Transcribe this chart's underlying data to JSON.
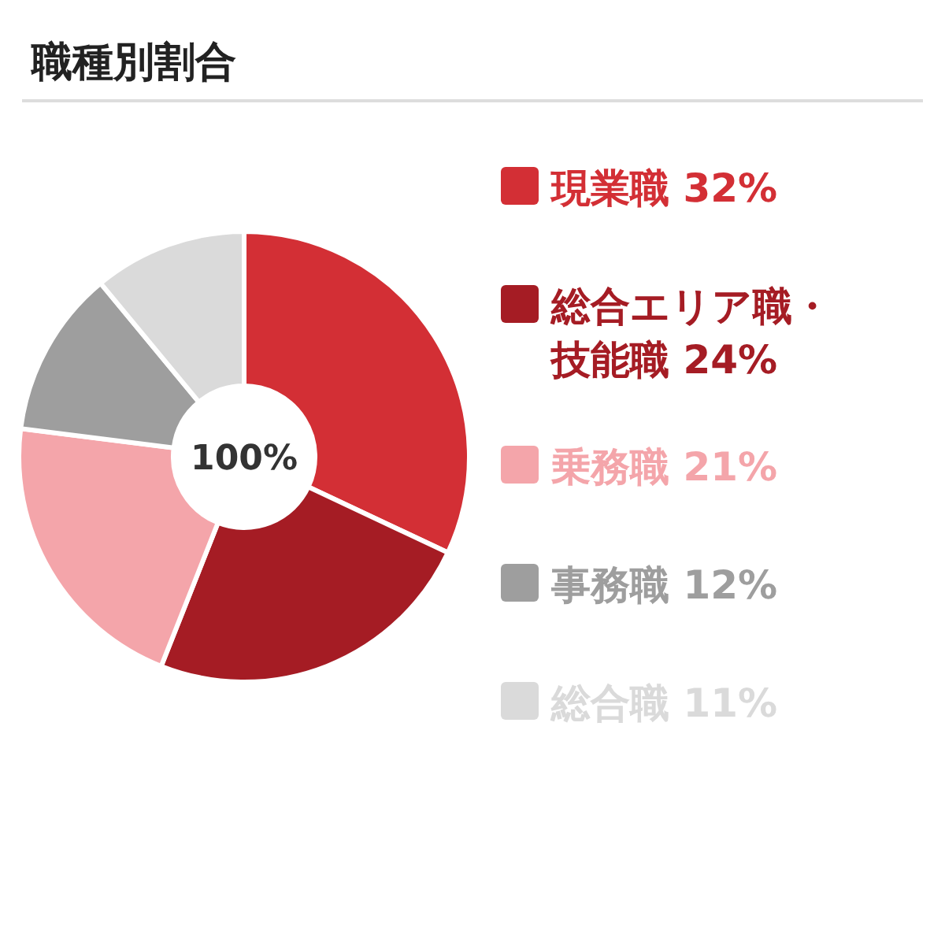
{
  "chart_data": {
    "type": "donut",
    "title": "職種別割合",
    "categories": [
      "現業職",
      "総合エリア職・技能職",
      "乗務職",
      "事務職",
      "総合職"
    ],
    "values": [
      32,
      24,
      21,
      12,
      11
    ],
    "value_labels": [
      "32%",
      "24%",
      "21%",
      "12%",
      "11%"
    ],
    "colors": [
      "#d32f35",
      "#a51c24",
      "#f4a5aa",
      "#9e9e9e",
      "#dadada"
    ],
    "annotations": [
      "100%"
    ],
    "legend": "right"
  }
}
